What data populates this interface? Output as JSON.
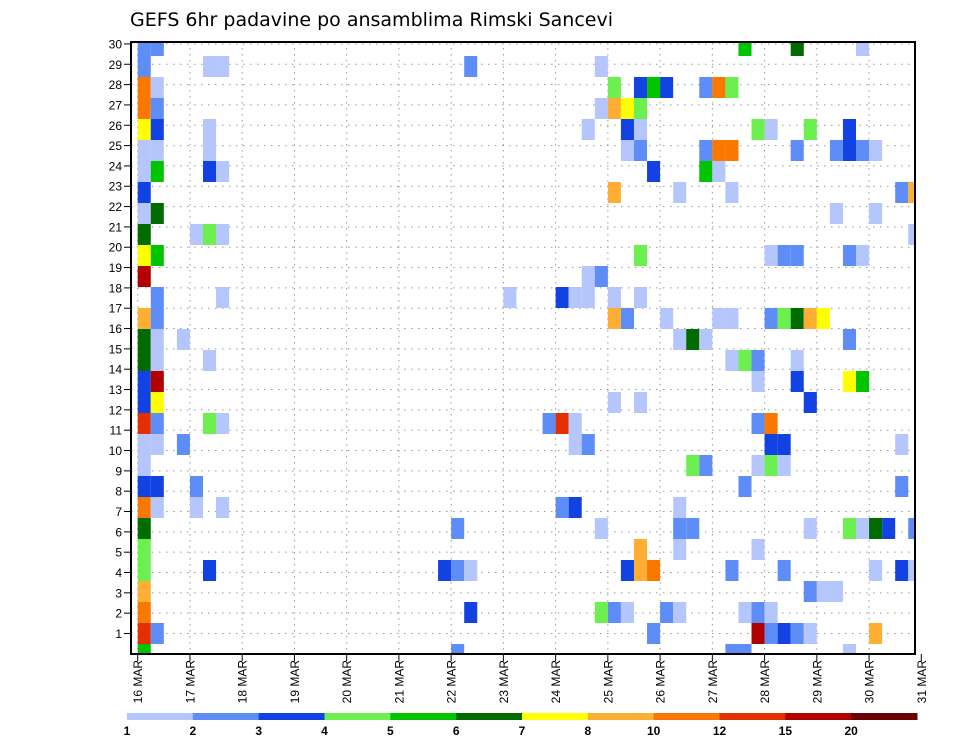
{
  "chart_data": {
    "type": "heatmap",
    "title": "GEFS 6hr padavine po ansamblima Rimski Sancevi",
    "xlabel": "",
    "ylabel": "",
    "x_axis": {
      "unit": "6-hour step",
      "steps": 60,
      "tick_labels": [
        "16 MAR",
        "17 MAR",
        "18 MAR",
        "19 MAR",
        "20 MAR",
        "21 MAR",
        "22 MAR",
        "23 MAR",
        "24 MAR",
        "25 MAR",
        "26 MAR",
        "27 MAR",
        "28 MAR",
        "29 MAR",
        "30 MAR",
        "31 MAR"
      ],
      "steps_per_day": 4
    },
    "y_axis": {
      "tick_labels": [
        "1",
        "2",
        "3",
        "4",
        "5",
        "6",
        "7",
        "8",
        "9",
        "10",
        "11",
        "12",
        "13",
        "14",
        "15",
        "16",
        "17",
        "18",
        "19",
        "20",
        "21",
        "22",
        "23",
        "24",
        "25",
        "26",
        "27",
        "28",
        "29",
        "30"
      ],
      "rows": 30
    },
    "grid": true,
    "colorbar": {
      "placement": "bottom",
      "labels": [
        "1",
        "2",
        "3",
        "4",
        "5",
        "6",
        "7",
        "8",
        "10",
        "12",
        "15",
        "20"
      ],
      "levels": [
        {
          "min": 1,
          "max": 2,
          "color": "#b4c6fb"
        },
        {
          "min": 2,
          "max": 3,
          "color": "#5f8df7"
        },
        {
          "min": 3,
          "max": 4,
          "color": "#1342e2"
        },
        {
          "min": 4,
          "max": 5,
          "color": "#6cf050"
        },
        {
          "min": 5,
          "max": 6,
          "color": "#00c400"
        },
        {
          "min": 6,
          "max": 7,
          "color": "#006c00"
        },
        {
          "min": 7,
          "max": 8,
          "color": "#ffff00"
        },
        {
          "min": 8,
          "max": 10,
          "color": "#ffae34"
        },
        {
          "min": 10,
          "max": 12,
          "color": "#fa7800"
        },
        {
          "min": 12,
          "max": 15,
          "color": "#e43000"
        },
        {
          "min": 15,
          "max": 20,
          "color": "#b00000"
        },
        {
          "min": 20,
          "max": null,
          "color": "#6a0000"
        }
      ]
    },
    "cells_format": "[row_band (0=bottom), time_step, level_index]",
    "cells": [
      [
        29,
        0,
        1
      ],
      [
        29,
        1,
        1
      ],
      [
        29,
        46,
        4
      ],
      [
        29,
        50,
        5
      ],
      [
        29,
        55,
        0
      ],
      [
        28,
        0,
        1
      ],
      [
        28,
        5,
        0
      ],
      [
        28,
        6,
        0
      ],
      [
        28,
        25,
        1
      ],
      [
        28,
        35,
        0
      ],
      [
        27,
        0,
        8
      ],
      [
        27,
        1,
        0
      ],
      [
        27,
        36,
        3
      ],
      [
        27,
        38,
        2
      ],
      [
        27,
        39,
        4
      ],
      [
        27,
        40,
        2
      ],
      [
        27,
        43,
        1
      ],
      [
        27,
        44,
        8
      ],
      [
        27,
        45,
        3
      ],
      [
        26,
        0,
        8
      ],
      [
        26,
        1,
        1
      ],
      [
        26,
        35,
        0
      ],
      [
        26,
        36,
        7
      ],
      [
        26,
        37,
        6
      ],
      [
        26,
        38,
        3
      ],
      [
        25,
        0,
        6
      ],
      [
        25,
        1,
        2
      ],
      [
        25,
        5,
        0
      ],
      [
        25,
        34,
        0
      ],
      [
        25,
        37,
        2
      ],
      [
        25,
        38,
        0
      ],
      [
        25,
        47,
        3
      ],
      [
        25,
        48,
        0
      ],
      [
        25,
        51,
        3
      ],
      [
        25,
        54,
        2
      ],
      [
        24,
        0,
        0
      ],
      [
        24,
        1,
        0
      ],
      [
        24,
        5,
        0
      ],
      [
        24,
        37,
        0
      ],
      [
        24,
        38,
        1
      ],
      [
        24,
        43,
        1
      ],
      [
        24,
        44,
        8
      ],
      [
        24,
        45,
        8
      ],
      [
        24,
        50,
        1
      ],
      [
        24,
        53,
        1
      ],
      [
        24,
        54,
        2
      ],
      [
        24,
        55,
        1
      ],
      [
        24,
        56,
        0
      ],
      [
        23,
        0,
        0
      ],
      [
        23,
        1,
        4
      ],
      [
        23,
        5,
        2
      ],
      [
        23,
        6,
        0
      ],
      [
        23,
        39,
        2
      ],
      [
        23,
        43,
        4
      ],
      [
        23,
        44,
        0
      ],
      [
        22,
        0,
        2
      ],
      [
        22,
        36,
        7
      ],
      [
        22,
        41,
        0
      ],
      [
        22,
        45,
        0
      ],
      [
        22,
        58,
        1
      ],
      [
        22,
        59,
        7
      ],
      [
        21,
        0,
        0
      ],
      [
        21,
        1,
        5
      ],
      [
        21,
        53,
        0
      ],
      [
        21,
        56,
        0
      ],
      [
        20,
        0,
        5
      ],
      [
        20,
        4,
        0
      ],
      [
        20,
        5,
        3
      ],
      [
        20,
        6,
        0
      ],
      [
        20,
        59,
        0
      ],
      [
        19,
        0,
        6
      ],
      [
        19,
        1,
        4
      ],
      [
        19,
        38,
        3
      ],
      [
        19,
        48,
        0
      ],
      [
        19,
        49,
        1
      ],
      [
        19,
        50,
        1
      ],
      [
        19,
        54,
        1
      ],
      [
        19,
        55,
        0
      ],
      [
        18,
        0,
        10
      ],
      [
        18,
        34,
        0
      ],
      [
        18,
        35,
        1
      ],
      [
        17,
        1,
        1
      ],
      [
        17,
        6,
        0
      ],
      [
        17,
        28,
        0
      ],
      [
        17,
        32,
        2
      ],
      [
        17,
        33,
        0
      ],
      [
        17,
        34,
        0
      ],
      [
        17,
        36,
        0
      ],
      [
        17,
        38,
        0
      ],
      [
        16,
        0,
        7
      ],
      [
        16,
        1,
        1
      ],
      [
        16,
        36,
        7
      ],
      [
        16,
        37,
        1
      ],
      [
        16,
        40,
        0
      ],
      [
        16,
        44,
        0
      ],
      [
        16,
        45,
        0
      ],
      [
        16,
        48,
        1
      ],
      [
        16,
        49,
        3
      ],
      [
        16,
        50,
        5
      ],
      [
        16,
        51,
        7
      ],
      [
        16,
        52,
        6
      ],
      [
        15,
        0,
        5
      ],
      [
        15,
        1,
        0
      ],
      [
        15,
        3,
        0
      ],
      [
        15,
        41,
        0
      ],
      [
        15,
        42,
        5
      ],
      [
        15,
        43,
        0
      ],
      [
        15,
        54,
        1
      ],
      [
        14,
        0,
        5
      ],
      [
        14,
        1,
        0
      ],
      [
        14,
        5,
        0
      ],
      [
        14,
        45,
        0
      ],
      [
        14,
        46,
        3
      ],
      [
        14,
        47,
        1
      ],
      [
        14,
        50,
        0
      ],
      [
        13,
        0,
        2
      ],
      [
        13,
        1,
        10
      ],
      [
        13,
        47,
        0
      ],
      [
        13,
        50,
        2
      ],
      [
        13,
        54,
        6
      ],
      [
        13,
        55,
        4
      ],
      [
        12,
        0,
        2
      ],
      [
        12,
        1,
        6
      ],
      [
        12,
        36,
        0
      ],
      [
        12,
        38,
        0
      ],
      [
        12,
        51,
        2
      ],
      [
        11,
        0,
        9
      ],
      [
        11,
        1,
        1
      ],
      [
        11,
        5,
        3
      ],
      [
        11,
        6,
        0
      ],
      [
        11,
        31,
        1
      ],
      [
        11,
        32,
        9
      ],
      [
        11,
        33,
        0
      ],
      [
        11,
        47,
        1
      ],
      [
        11,
        48,
        8
      ],
      [
        10,
        0,
        0
      ],
      [
        10,
        1,
        0
      ],
      [
        10,
        3,
        1
      ],
      [
        10,
        33,
        0
      ],
      [
        10,
        34,
        1
      ],
      [
        10,
        48,
        2
      ],
      [
        10,
        49,
        2
      ],
      [
        10,
        58,
        0
      ],
      [
        9,
        0,
        0
      ],
      [
        9,
        42,
        3
      ],
      [
        9,
        43,
        1
      ],
      [
        9,
        47,
        0
      ],
      [
        9,
        48,
        3
      ],
      [
        9,
        49,
        0
      ],
      [
        8,
        0,
        2
      ],
      [
        8,
        1,
        2
      ],
      [
        8,
        4,
        1
      ],
      [
        8,
        46,
        1
      ],
      [
        8,
        58,
        1
      ],
      [
        7,
        0,
        8
      ],
      [
        7,
        1,
        0
      ],
      [
        7,
        4,
        0
      ],
      [
        7,
        6,
        0
      ],
      [
        7,
        32,
        1
      ],
      [
        7,
        33,
        2
      ],
      [
        7,
        41,
        0
      ],
      [
        6,
        0,
        5
      ],
      [
        6,
        24,
        1
      ],
      [
        6,
        35,
        0
      ],
      [
        6,
        41,
        1
      ],
      [
        6,
        42,
        1
      ],
      [
        6,
        51,
        0
      ],
      [
        6,
        54,
        3
      ],
      [
        6,
        55,
        0
      ],
      [
        6,
        56,
        5
      ],
      [
        6,
        57,
        2
      ],
      [
        6,
        59,
        1
      ],
      [
        5,
        0,
        3
      ],
      [
        5,
        38,
        7
      ],
      [
        5,
        41,
        0
      ],
      [
        5,
        47,
        0
      ],
      [
        4,
        0,
        3
      ],
      [
        4,
        5,
        2
      ],
      [
        4,
        23,
        2
      ],
      [
        4,
        24,
        1
      ],
      [
        4,
        25,
        0
      ],
      [
        4,
        37,
        2
      ],
      [
        4,
        38,
        7
      ],
      [
        4,
        39,
        8
      ],
      [
        4,
        45,
        1
      ],
      [
        4,
        49,
        1
      ],
      [
        4,
        56,
        0
      ],
      [
        4,
        58,
        2
      ],
      [
        4,
        59,
        0
      ],
      [
        3,
        0,
        7
      ],
      [
        3,
        51,
        1
      ],
      [
        3,
        52,
        0
      ],
      [
        3,
        53,
        0
      ],
      [
        2,
        0,
        8
      ],
      [
        2,
        25,
        2
      ],
      [
        2,
        35,
        3
      ],
      [
        2,
        36,
        1
      ],
      [
        2,
        37,
        0
      ],
      [
        2,
        40,
        1
      ],
      [
        2,
        41,
        0
      ],
      [
        2,
        46,
        0
      ],
      [
        2,
        47,
        1
      ],
      [
        2,
        48,
        0
      ],
      [
        1,
        0,
        9
      ],
      [
        1,
        1,
        1
      ],
      [
        1,
        39,
        1
      ],
      [
        1,
        47,
        10
      ],
      [
        1,
        48,
        1
      ],
      [
        1,
        49,
        2
      ],
      [
        1,
        50,
        1
      ],
      [
        1,
        51,
        0
      ],
      [
        1,
        56,
        7
      ],
      [
        0,
        0,
        4
      ],
      [
        0,
        24,
        1
      ],
      [
        0,
        45,
        1
      ],
      [
        0,
        46,
        1
      ],
      [
        0,
        54,
        0
      ]
    ]
  }
}
